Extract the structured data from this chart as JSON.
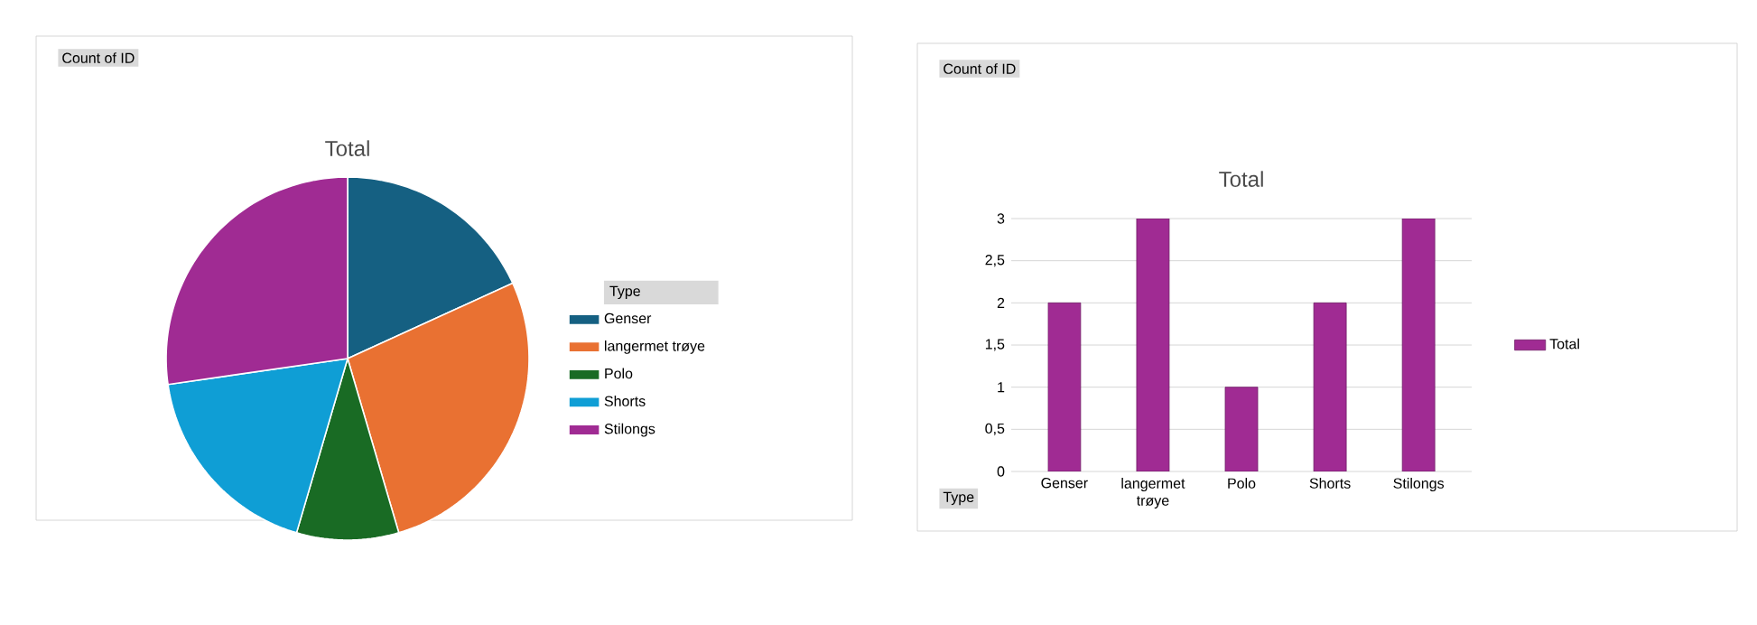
{
  "chart_data": [
    {
      "type": "pie",
      "title": "Total",
      "legend_title": "Type",
      "legend": "right",
      "categories": [
        "Genser",
        "langermet trøye",
        "Polo",
        "Shorts",
        "Stilongs"
      ],
      "values": [
        18.18,
        27.27,
        9.09,
        18.18,
        27.28
      ],
      "colors": [
        "#156082",
        "#e97132",
        "#196b24",
        "#0f9ed5",
        "#a02b93"
      ],
      "annotations": [
        "Count of ID"
      ]
    },
    {
      "type": "bar",
      "title": "Total",
      "legend": "right",
      "grid": "y",
      "categories": [
        "Genser",
        "langermet trøye",
        "Polo",
        "Shorts",
        "Stilongs"
      ],
      "series": [
        {
          "name": "Total",
          "color": "#a02b93",
          "values": [
            2,
            3,
            1,
            2,
            3
          ]
        }
      ],
      "ylim": [
        0,
        3
      ],
      "yticks": [
        0,
        {
          "value": 0.5,
          "label": "0,5"
        },
        1,
        {
          "value": 1.5,
          "label": "1,5"
        },
        2,
        {
          "value": 2.5,
          "label": "2,5"
        },
        3
      ],
      "annotations": [
        "Count of ID",
        "Type"
      ]
    }
  ]
}
